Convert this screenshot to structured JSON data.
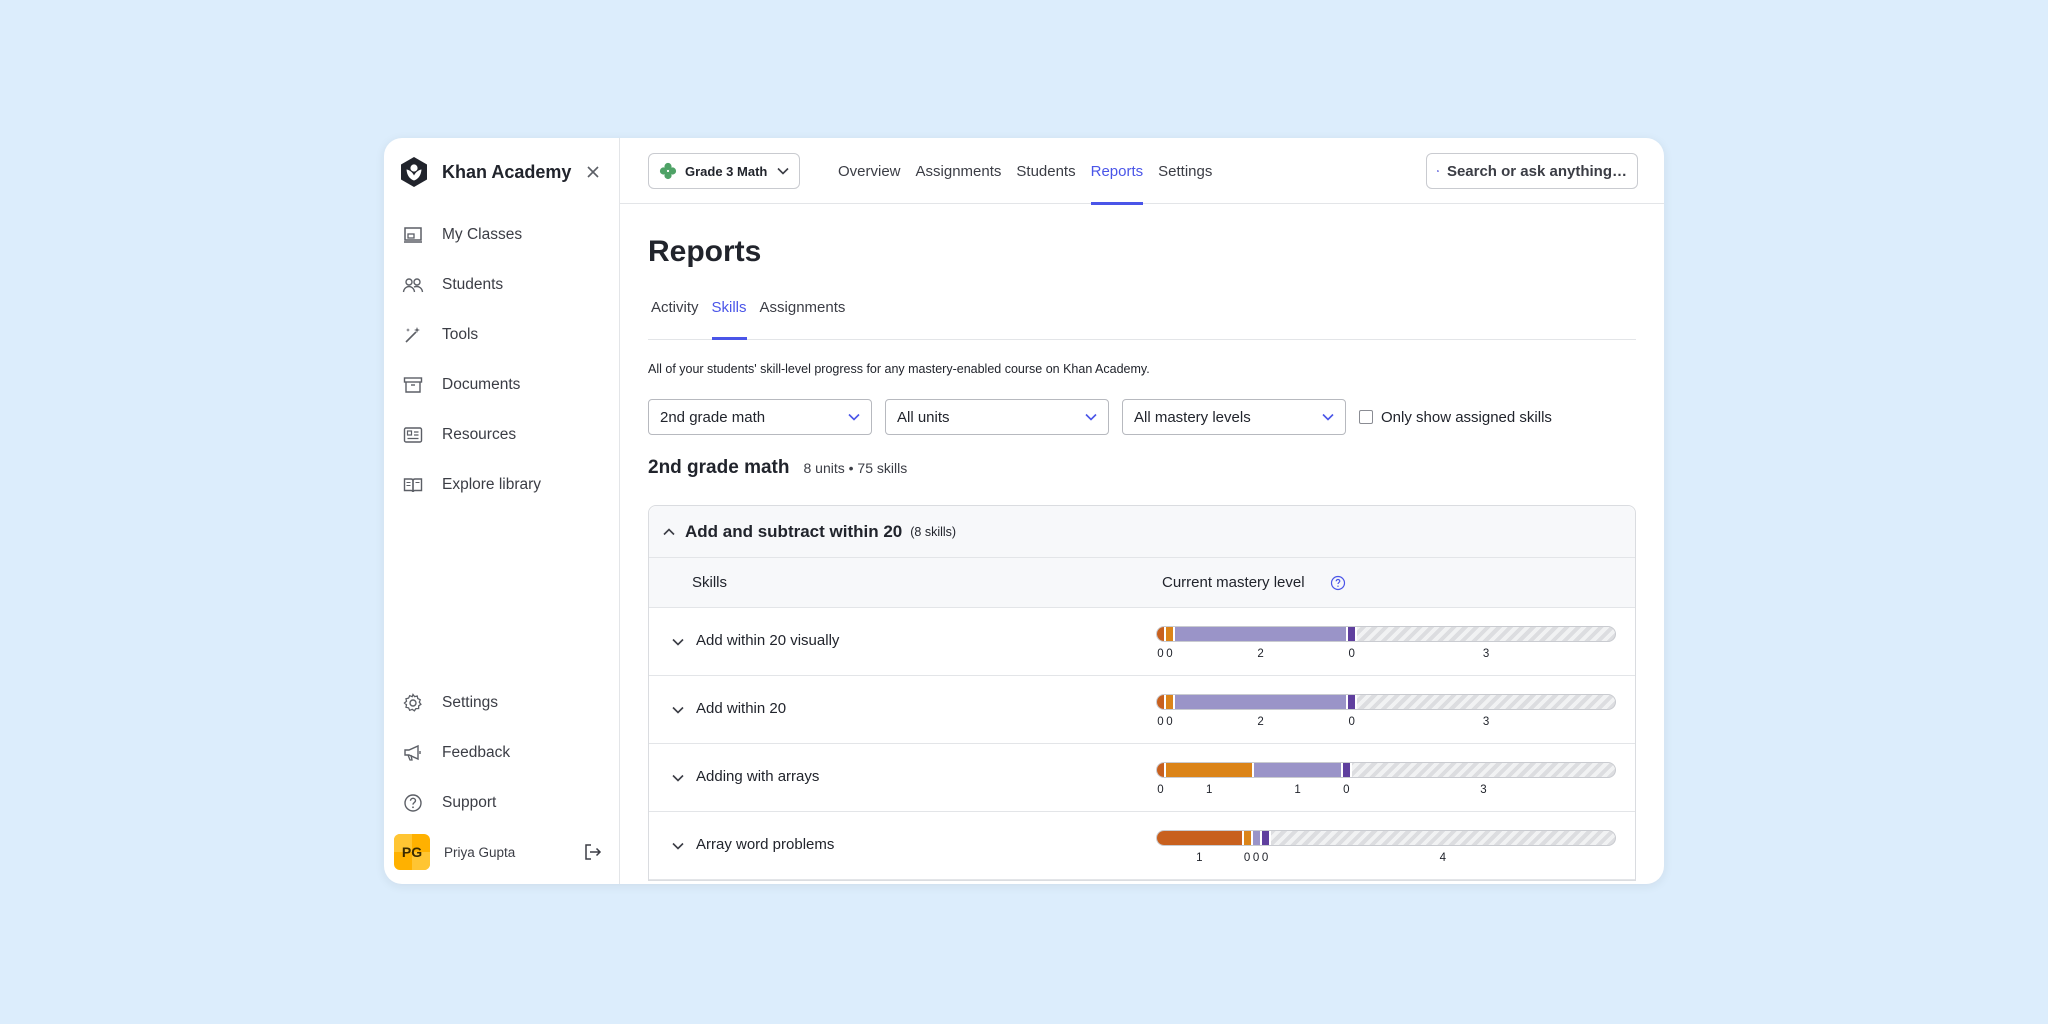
{
  "brand": {
    "name": "Khan Academy"
  },
  "sidebar": {
    "items": [
      {
        "label": "My Classes",
        "icon": "classroom-icon"
      },
      {
        "label": "Students",
        "icon": "students-icon"
      },
      {
        "label": "Tools",
        "icon": "magic-wand-icon"
      },
      {
        "label": "Documents",
        "icon": "archive-box-icon"
      },
      {
        "label": "Resources",
        "icon": "newspaper-icon"
      },
      {
        "label": "Explore library",
        "icon": "book-icon"
      }
    ],
    "bottom_items": [
      {
        "label": "Settings",
        "icon": "gear-icon"
      },
      {
        "label": "Feedback",
        "icon": "megaphone-icon"
      },
      {
        "label": "Support",
        "icon": "question-icon"
      }
    ],
    "user": {
      "initials": "PG",
      "name": "Priya Gupta"
    }
  },
  "topbar": {
    "course": "Grade 3 Math",
    "tabs": [
      "Overview",
      "Assignments",
      "Students",
      "Reports",
      "Settings"
    ],
    "active_tab": "Reports",
    "search_placeholder": "Search or ask anything…"
  },
  "page": {
    "title": "Reports",
    "subtabs": [
      "Activity",
      "Skills",
      "Assignments"
    ],
    "active_subtab": "Skills",
    "description": "All of your students' skill-level progress for any mastery-enabled course on Khan Academy.",
    "filters": {
      "course": "2nd grade math",
      "units": "All units",
      "mastery": "All mastery levels",
      "assigned_only_label": "Only show assigned skills",
      "assigned_only_checked": false
    },
    "course_heading": "2nd grade math",
    "course_meta": "8 units • 75 skills"
  },
  "unit": {
    "title": "Add and subtract within 20",
    "count": "(8 skills)",
    "col_skills": "Skills",
    "col_mastery": "Current mastery level"
  },
  "colors": {
    "attempted": "#c8601e",
    "familiar": "#db8419",
    "proficient": "#9a94c8",
    "mastered": "#5f3f9e",
    "not_started": "#e4e5e7",
    "accent": "#4a55e8"
  },
  "skills": [
    {
      "name": "Add within 20 visually",
      "counts": [
        0,
        0,
        2,
        0,
        3
      ]
    },
    {
      "name": "Add within 20",
      "counts": [
        0,
        0,
        2,
        0,
        3
      ]
    },
    {
      "name": "Adding with arrays",
      "counts": [
        0,
        1,
        1,
        0,
        3
      ]
    },
    {
      "name": "Array word problems",
      "counts": [
        1,
        0,
        0,
        0,
        4
      ]
    }
  ]
}
